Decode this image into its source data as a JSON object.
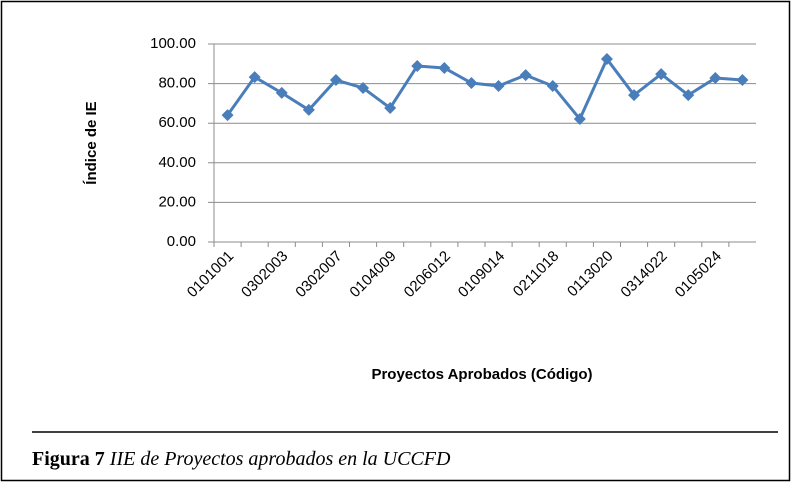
{
  "chart_data": {
    "type": "line",
    "x_label": "Proyectos Aprobados (Código)",
    "y_label": "Índice de IE",
    "categories": [
      "0101001",
      null,
      "0302003",
      null,
      "0302007",
      null,
      "0104009",
      null,
      "0206012",
      null,
      "0109014",
      null,
      "0211018",
      null,
      "0113020",
      null,
      "0314022",
      null,
      "0105024",
      null
    ],
    "values": [
      64.1,
      83.3,
      75.3,
      66.7,
      81.8,
      77.8,
      67.7,
      88.9,
      87.9,
      80.3,
      78.8,
      84.3,
      78.8,
      62.1,
      92.4,
      74.2,
      84.8,
      74.2,
      82.8,
      81.8
    ],
    "color": "#4a7ebb",
    "ylim": [
      0,
      100
    ],
    "yticks": [
      {
        "value": 0,
        "label": "0.00"
      },
      {
        "value": 20,
        "label": "20.00"
      },
      {
        "value": 40,
        "label": "40.00"
      },
      {
        "value": 60,
        "label": "60.00"
      },
      {
        "value": 80,
        "label": "80.00"
      },
      {
        "value": 100,
        "label": "100.00"
      }
    ],
    "grid": true
  },
  "caption": {
    "label": "Figura 7",
    "text": "IIE de Proyectos aprobados en la UCCFD"
  }
}
